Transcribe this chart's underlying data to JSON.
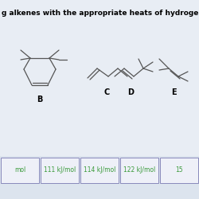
{
  "title": "g alkenes with the appropriate heats of hydrogenation.",
  "title_fontsize": 6.5,
  "title_bold": true,
  "bg_color": "#e8edf4",
  "labels": [
    "B",
    "C",
    "D",
    "E"
  ],
  "label_fontsize": 7,
  "label_bold": true,
  "table_values": [
    "mol",
    "111 kJ/mol",
    "114 kJ/mol",
    "122 kJ/mol",
    "15"
  ],
  "table_text_color": "#3a9a3a",
  "table_border_color": "#8888bb",
  "table_bg_color": "#eef0f8",
  "table_fontsize": 5.5,
  "line_color": "#555555",
  "line_width": 0.9
}
